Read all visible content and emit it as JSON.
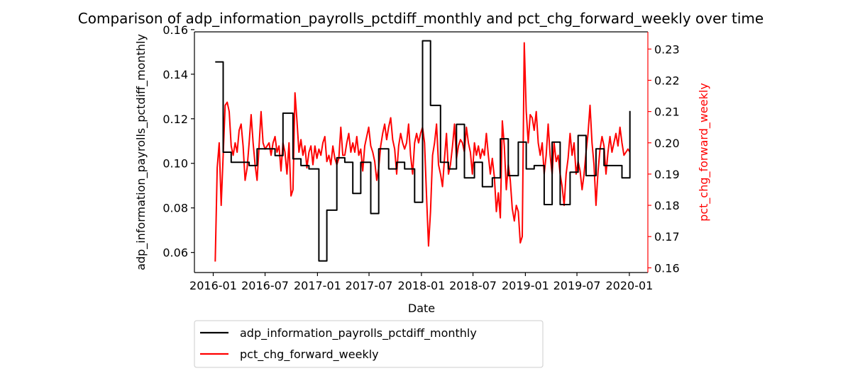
{
  "chart_data": {
    "type": "line",
    "title": "Comparison of adp_information_payrolls_pctdiff_monthly and pct_chg_forward_weekly over time",
    "xlabel": "Date",
    "ylabel_left": "adp_information_payrolls_pctdiff_monthly",
    "ylabel_right": "pct_chg_forward_weekly",
    "x_ticks": [
      "2016-01",
      "2016-07",
      "2017-01",
      "2017-07",
      "2018-01",
      "2018-07",
      "2019-01",
      "2019-07",
      "2020-01"
    ],
    "y_left_ticks": [
      "0.06",
      "0.08",
      "0.10",
      "0.12",
      "0.14",
      "0.16"
    ],
    "y_right_ticks": [
      "0.16",
      "0.17",
      "0.18",
      "0.19",
      "0.20",
      "0.21",
      "0.22",
      "0.23"
    ],
    "xlim": [
      "2015-10-27",
      "2020-03-06"
    ],
    "ylim_left": [
      0.051,
      0.159
    ],
    "ylim_right": [
      0.1585,
      0.2355
    ],
    "grid": false,
    "legend_location": "below-left",
    "colors": {
      "left": "#000000",
      "right": "#ff0000",
      "right_axis": "#ff0000"
    },
    "series": [
      {
        "name": "adp_information_payrolls_pctdiff_monthly",
        "axis": "left",
        "color": "#000000",
        "step": true,
        "points": [
          [
            "2016-01-08",
            0.1455
          ],
          [
            "2016-02-05",
            0.105
          ],
          [
            "2016-03-04",
            0.1005
          ],
          [
            "2016-04-08",
            0.1005
          ],
          [
            "2016-05-06",
            0.099
          ],
          [
            "2016-06-03",
            0.1065
          ],
          [
            "2016-07-08",
            0.1065
          ],
          [
            "2016-08-05",
            0.1035
          ],
          [
            "2016-09-02",
            0.1225
          ],
          [
            "2016-10-07",
            0.102
          ],
          [
            "2016-11-04",
            0.099
          ],
          [
            "2016-12-02",
            0.0975
          ],
          [
            "2017-01-06",
            0.0562
          ],
          [
            "2017-02-03",
            0.079
          ],
          [
            "2017-03-10",
            0.1025
          ],
          [
            "2017-04-07",
            0.1005
          ],
          [
            "2017-05-05",
            0.0865
          ],
          [
            "2017-06-02",
            0.1005
          ],
          [
            "2017-07-07",
            0.0775
          ],
          [
            "2017-08-04",
            0.1065
          ],
          [
            "2017-09-08",
            0.0975
          ],
          [
            "2017-10-06",
            0.1005
          ],
          [
            "2017-11-03",
            0.0975
          ],
          [
            "2017-12-08",
            0.0825
          ],
          [
            "2018-01-05",
            0.155
          ],
          [
            "2018-02-02",
            0.126
          ],
          [
            "2018-03-09",
            0.1005
          ],
          [
            "2018-04-06",
            0.0975
          ],
          [
            "2018-05-04",
            0.1175
          ],
          [
            "2018-06-01",
            0.0935
          ],
          [
            "2018-07-06",
            0.1005
          ],
          [
            "2018-08-03",
            0.0895
          ],
          [
            "2018-09-07",
            0.0935
          ],
          [
            "2018-10-05",
            0.111
          ],
          [
            "2018-11-02",
            0.0945
          ],
          [
            "2018-12-07",
            0.1095
          ],
          [
            "2019-01-04",
            0.0975
          ],
          [
            "2019-02-01",
            0.099
          ],
          [
            "2019-03-08",
            0.0815
          ],
          [
            "2019-04-05",
            0.1095
          ],
          [
            "2019-05-03",
            0.0815
          ],
          [
            "2019-06-07",
            0.096
          ],
          [
            "2019-07-05",
            0.1125
          ],
          [
            "2019-08-02",
            0.0945
          ],
          [
            "2019-09-06",
            0.1065
          ],
          [
            "2019-10-04",
            0.099
          ],
          [
            "2019-11-01",
            0.099
          ],
          [
            "2019-12-06",
            0.0935
          ],
          [
            "2020-01-03",
            0.1235
          ]
        ]
      },
      {
        "name": "pct_chg_forward_weekly",
        "axis": "right",
        "color": "#ff0000",
        "step": false,
        "points": [
          [
            "2016-01-08",
            0.162
          ],
          [
            "2016-01-15",
            0.192
          ],
          [
            "2016-01-22",
            0.2
          ],
          [
            "2016-01-29",
            0.18
          ],
          [
            "2016-02-05",
            0.196
          ],
          [
            "2016-02-12",
            0.212
          ],
          [
            "2016-02-19",
            0.213
          ],
          [
            "2016-02-26",
            0.21
          ],
          [
            "2016-03-04",
            0.199
          ],
          [
            "2016-03-11",
            0.196
          ],
          [
            "2016-03-18",
            0.2
          ],
          [
            "2016-03-25",
            0.197
          ],
          [
            "2016-04-01",
            0.204
          ],
          [
            "2016-04-08",
            0.206
          ],
          [
            "2016-04-15",
            0.199
          ],
          [
            "2016-04-22",
            0.188
          ],
          [
            "2016-04-29",
            0.192
          ],
          [
            "2016-05-06",
            0.2
          ],
          [
            "2016-05-13",
            0.209
          ],
          [
            "2016-05-20",
            0.2
          ],
          [
            "2016-05-27",
            0.193
          ],
          [
            "2016-06-03",
            0.188
          ],
          [
            "2016-06-10",
            0.199
          ],
          [
            "2016-06-17",
            0.21
          ],
          [
            "2016-06-24",
            0.2
          ],
          [
            "2016-07-01",
            0.198
          ],
          [
            "2016-07-08",
            0.199
          ],
          [
            "2016-07-15",
            0.2
          ],
          [
            "2016-07-22",
            0.196
          ],
          [
            "2016-07-29",
            0.2
          ],
          [
            "2016-08-05",
            0.202
          ],
          [
            "2016-08-12",
            0.197
          ],
          [
            "2016-08-19",
            0.199
          ],
          [
            "2016-08-26",
            0.191
          ],
          [
            "2016-09-02",
            0.2
          ],
          [
            "2016-09-09",
            0.197
          ],
          [
            "2016-09-16",
            0.19
          ],
          [
            "2016-09-23",
            0.2
          ],
          [
            "2016-09-30",
            0.183
          ],
          [
            "2016-10-07",
            0.185
          ],
          [
            "2016-10-14",
            0.216
          ],
          [
            "2016-10-21",
            0.207
          ],
          [
            "2016-10-28",
            0.197
          ],
          [
            "2016-11-04",
            0.201
          ],
          [
            "2016-11-11",
            0.196
          ],
          [
            "2016-11-18",
            0.199
          ],
          [
            "2016-11-25",
            0.192
          ],
          [
            "2016-12-02",
            0.197
          ],
          [
            "2016-12-09",
            0.199
          ],
          [
            "2016-12-16",
            0.193
          ],
          [
            "2016-12-23",
            0.199
          ],
          [
            "2016-12-30",
            0.195
          ],
          [
            "2017-01-06",
            0.198
          ],
          [
            "2017-01-13",
            0.196
          ],
          [
            "2017-01-20",
            0.2
          ],
          [
            "2017-01-27",
            0.202
          ],
          [
            "2017-02-03",
            0.194
          ],
          [
            "2017-02-10",
            0.196
          ],
          [
            "2017-02-17",
            0.193
          ],
          [
            "2017-02-24",
            0.199
          ],
          [
            "2017-03-03",
            0.195
          ],
          [
            "2017-03-10",
            0.193
          ],
          [
            "2017-03-17",
            0.195
          ],
          [
            "2017-03-24",
            0.205
          ],
          [
            "2017-03-31",
            0.196
          ],
          [
            "2017-04-07",
            0.196
          ],
          [
            "2017-04-14",
            0.2
          ],
          [
            "2017-04-21",
            0.203
          ],
          [
            "2017-04-28",
            0.197
          ],
          [
            "2017-05-05",
            0.2
          ],
          [
            "2017-05-12",
            0.197
          ],
          [
            "2017-05-19",
            0.202
          ],
          [
            "2017-05-26",
            0.196
          ],
          [
            "2017-06-02",
            0.198
          ],
          [
            "2017-06-09",
            0.191
          ],
          [
            "2017-06-16",
            0.199
          ],
          [
            "2017-06-23",
            0.202
          ],
          [
            "2017-06-30",
            0.205
          ],
          [
            "2017-07-07",
            0.199
          ],
          [
            "2017-07-14",
            0.197
          ],
          [
            "2017-07-21",
            0.194
          ],
          [
            "2017-07-28",
            0.188
          ],
          [
            "2017-08-04",
            0.192
          ],
          [
            "2017-08-11",
            0.199
          ],
          [
            "2017-08-18",
            0.203
          ],
          [
            "2017-08-25",
            0.206
          ],
          [
            "2017-09-01",
            0.201
          ],
          [
            "2017-09-08",
            0.205
          ],
          [
            "2017-09-15",
            0.208
          ],
          [
            "2017-09-22",
            0.201
          ],
          [
            "2017-09-29",
            0.198
          ],
          [
            "2017-10-06",
            0.19
          ],
          [
            "2017-10-13",
            0.199
          ],
          [
            "2017-10-20",
            0.203
          ],
          [
            "2017-10-27",
            0.2
          ],
          [
            "2017-11-03",
            0.198
          ],
          [
            "2017-11-10",
            0.2
          ],
          [
            "2017-11-17",
            0.206
          ],
          [
            "2017-11-24",
            0.196
          ],
          [
            "2017-12-01",
            0.19
          ],
          [
            "2017-12-08",
            0.2
          ],
          [
            "2017-12-15",
            0.203
          ],
          [
            "2017-12-22",
            0.2
          ],
          [
            "2017-12-29",
            0.203
          ],
          [
            "2018-01-05",
            0.205
          ],
          [
            "2018-01-12",
            0.2
          ],
          [
            "2018-01-19",
            0.183
          ],
          [
            "2018-01-26",
            0.167
          ],
          [
            "2018-02-02",
            0.178
          ],
          [
            "2018-02-09",
            0.196
          ],
          [
            "2018-02-16",
            0.2
          ],
          [
            "2018-02-23",
            0.206
          ],
          [
            "2018-03-02",
            0.193
          ],
          [
            "2018-03-09",
            0.19
          ],
          [
            "2018-03-16",
            0.186
          ],
          [
            "2018-03-23",
            0.195
          ],
          [
            "2018-03-30",
            0.203
          ],
          [
            "2018-04-06",
            0.19
          ],
          [
            "2018-04-13",
            0.193
          ],
          [
            "2018-04-20",
            0.199
          ],
          [
            "2018-04-27",
            0.206
          ],
          [
            "2018-05-04",
            0.195
          ],
          [
            "2018-05-11",
            0.199
          ],
          [
            "2018-05-18",
            0.201
          ],
          [
            "2018-05-25",
            0.2
          ],
          [
            "2018-06-01",
            0.197
          ],
          [
            "2018-06-08",
            0.205
          ],
          [
            "2018-06-15",
            0.2
          ],
          [
            "2018-06-22",
            0.197
          ],
          [
            "2018-06-29",
            0.19
          ],
          [
            "2018-07-06",
            0.2
          ],
          [
            "2018-07-13",
            0.196
          ],
          [
            "2018-07-20",
            0.199
          ],
          [
            "2018-07-27",
            0.195
          ],
          [
            "2018-08-03",
            0.198
          ],
          [
            "2018-08-10",
            0.196
          ],
          [
            "2018-08-17",
            0.203
          ],
          [
            "2018-08-24",
            0.196
          ],
          [
            "2018-08-31",
            0.19
          ],
          [
            "2018-09-07",
            0.195
          ],
          [
            "2018-09-14",
            0.189
          ],
          [
            "2018-09-21",
            0.178
          ],
          [
            "2018-09-28",
            0.184
          ],
          [
            "2018-10-05",
            0.176
          ],
          [
            "2018-10-12",
            0.207
          ],
          [
            "2018-10-19",
            0.199
          ],
          [
            "2018-10-26",
            0.185
          ],
          [
            "2018-11-02",
            0.193
          ],
          [
            "2018-11-09",
            0.188
          ],
          [
            "2018-11-16",
            0.179
          ],
          [
            "2018-11-23",
            0.175
          ],
          [
            "2018-11-30",
            0.18
          ],
          [
            "2018-12-07",
            0.178
          ],
          [
            "2018-12-14",
            0.168
          ],
          [
            "2018-12-21",
            0.17
          ],
          [
            "2018-12-28",
            0.232
          ],
          [
            "2019-01-04",
            0.21
          ],
          [
            "2019-01-11",
            0.2
          ],
          [
            "2019-01-18",
            0.209
          ],
          [
            "2019-01-25",
            0.208
          ],
          [
            "2019-02-01",
            0.204
          ],
          [
            "2019-02-08",
            0.21
          ],
          [
            "2019-02-15",
            0.2
          ],
          [
            "2019-02-22",
            0.196
          ],
          [
            "2019-03-01",
            0.2
          ],
          [
            "2019-03-08",
            0.19
          ],
          [
            "2019-03-15",
            0.196
          ],
          [
            "2019-03-22",
            0.206
          ],
          [
            "2019-03-29",
            0.196
          ],
          [
            "2019-04-05",
            0.19
          ],
          [
            "2019-04-12",
            0.2
          ],
          [
            "2019-04-19",
            0.194
          ],
          [
            "2019-04-26",
            0.196
          ],
          [
            "2019-05-03",
            0.19
          ],
          [
            "2019-05-10",
            0.186
          ],
          [
            "2019-05-17",
            0.18
          ],
          [
            "2019-05-24",
            0.19
          ],
          [
            "2019-05-31",
            0.195
          ],
          [
            "2019-06-07",
            0.203
          ],
          [
            "2019-06-14",
            0.196
          ],
          [
            "2019-06-21",
            0.2
          ],
          [
            "2019-06-28",
            0.19
          ],
          [
            "2019-07-05",
            0.194
          ],
          [
            "2019-07-12",
            0.191
          ],
          [
            "2019-07-19",
            0.185
          ],
          [
            "2019-07-26",
            0.19
          ],
          [
            "2019-08-02",
            0.197
          ],
          [
            "2019-08-09",
            0.203
          ],
          [
            "2019-08-16",
            0.212
          ],
          [
            "2019-08-23",
            0.2
          ],
          [
            "2019-08-30",
            0.193
          ],
          [
            "2019-09-06",
            0.18
          ],
          [
            "2019-09-13",
            0.191
          ],
          [
            "2019-09-20",
            0.198
          ],
          [
            "2019-09-27",
            0.202
          ],
          [
            "2019-10-04",
            0.199
          ],
          [
            "2019-10-11",
            0.19
          ],
          [
            "2019-10-18",
            0.197
          ],
          [
            "2019-10-25",
            0.202
          ],
          [
            "2019-11-01",
            0.197
          ],
          [
            "2019-11-08",
            0.2
          ],
          [
            "2019-11-15",
            0.203
          ],
          [
            "2019-11-22",
            0.199
          ],
          [
            "2019-11-29",
            0.205
          ],
          [
            "2019-12-06",
            0.2
          ],
          [
            "2019-12-13",
            0.196
          ],
          [
            "2019-12-20",
            0.197
          ],
          [
            "2019-12-27",
            0.198
          ],
          [
            "2020-01-03",
            0.197
          ]
        ]
      }
    ]
  }
}
